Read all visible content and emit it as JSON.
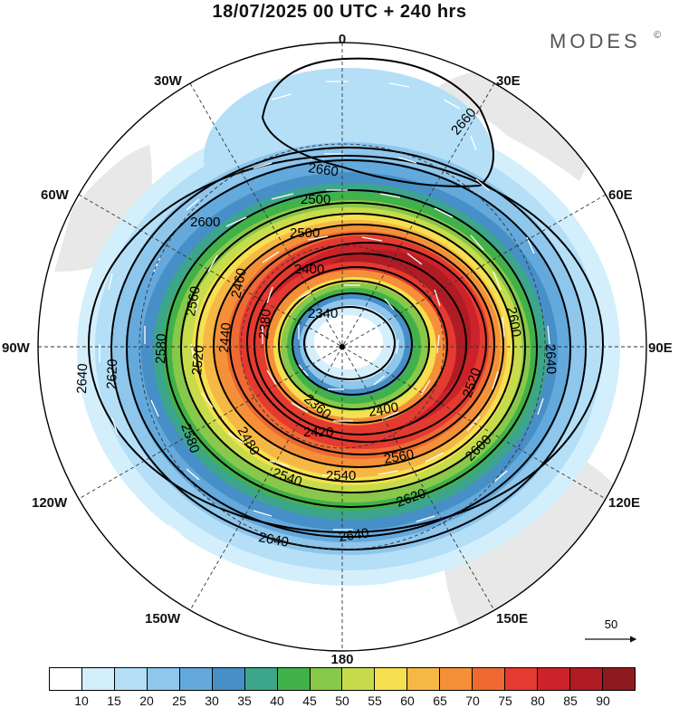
{
  "header": {
    "title": "18/07/2025  00 UTC  + 240 hrs",
    "brand": "MODES"
  },
  "map": {
    "projection": "south-polar-stereographic",
    "longitude_labels": {
      "top": "0",
      "bottom": "180",
      "left": "90W",
      "right": "90E",
      "nw30": "30W",
      "nw60": "60W",
      "ne30": "30E",
      "ne60": "60E",
      "sw120": "120W",
      "sw150": "150W",
      "se120": "120E",
      "se150": "150E"
    },
    "contour_labels": [
      "2660",
      "2660",
      "2660",
      "2500",
      "2600",
      "2500",
      "2400",
      "2460",
      "2560",
      "2600",
      "2340",
      "2380",
      "2440",
      "2520",
      "2580",
      "2620",
      "2640",
      "2640",
      "2620",
      "2580",
      "2480",
      "2420",
      "2400",
      "2360",
      "2520",
      "2540",
      "2540",
      "2560",
      "2600",
      "2620",
      "2640",
      "2640"
    ],
    "vector_reference": "50"
  },
  "colorbar": {
    "colors": [
      "#ffffff",
      "#d4effc",
      "#b4dff7",
      "#8ec6ec",
      "#64a9dc",
      "#478fc7",
      "#3da58c",
      "#41b24a",
      "#88c84a",
      "#c7dc4b",
      "#f5e050",
      "#f6b844",
      "#f59038",
      "#ee6a32",
      "#e43a2f",
      "#cc2229",
      "#b01c24",
      "#8f1a1d"
    ],
    "labels": [
      "10",
      "15",
      "20",
      "25",
      "30",
      "35",
      "40",
      "45",
      "50",
      "55",
      "60",
      "65",
      "70",
      "75",
      "80",
      "85",
      "90"
    ]
  }
}
